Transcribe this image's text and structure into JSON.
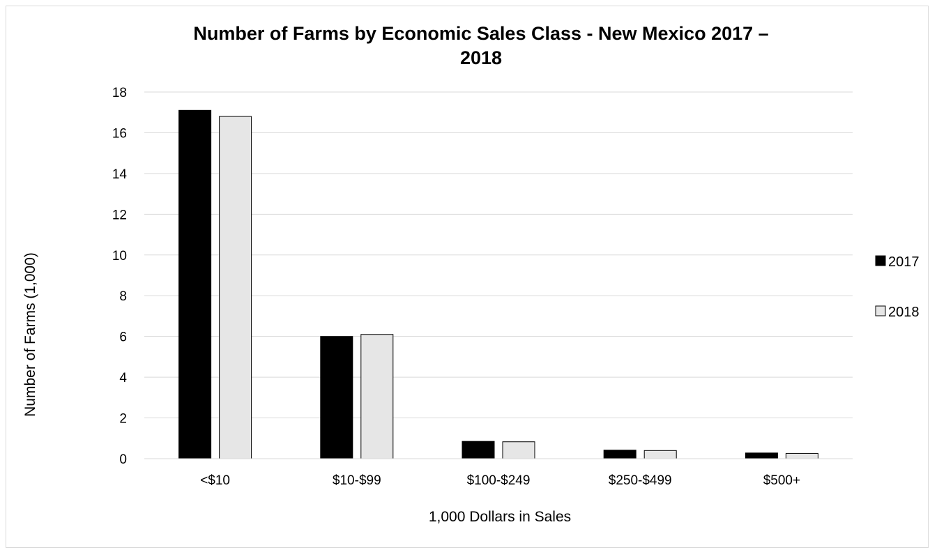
{
  "chart_data": {
    "type": "bar",
    "title_line1": "Number of Farms by Economic Sales Class - New Mexico 2017 –",
    "title_line2": "2018",
    "xlabel": "1,000 Dollars in Sales",
    "ylabel": "Number of Farms (1,000)",
    "categories": [
      "<$10",
      "$10-$99",
      "$100-$249",
      "$250-$499",
      "$500+"
    ],
    "series": [
      {
        "name": "2017",
        "color": "#000000",
        "values": [
          17.1,
          6.0,
          0.85,
          0.42,
          0.28
        ]
      },
      {
        "name": "2018",
        "color": "#e6e6e6",
        "values": [
          16.8,
          6.1,
          0.83,
          0.4,
          0.26
        ]
      }
    ],
    "ylim": [
      0,
      18
    ],
    "yticks": [
      0,
      2,
      4,
      6,
      8,
      10,
      12,
      14,
      16,
      18
    ],
    "grid": true,
    "legend_position": "right"
  }
}
